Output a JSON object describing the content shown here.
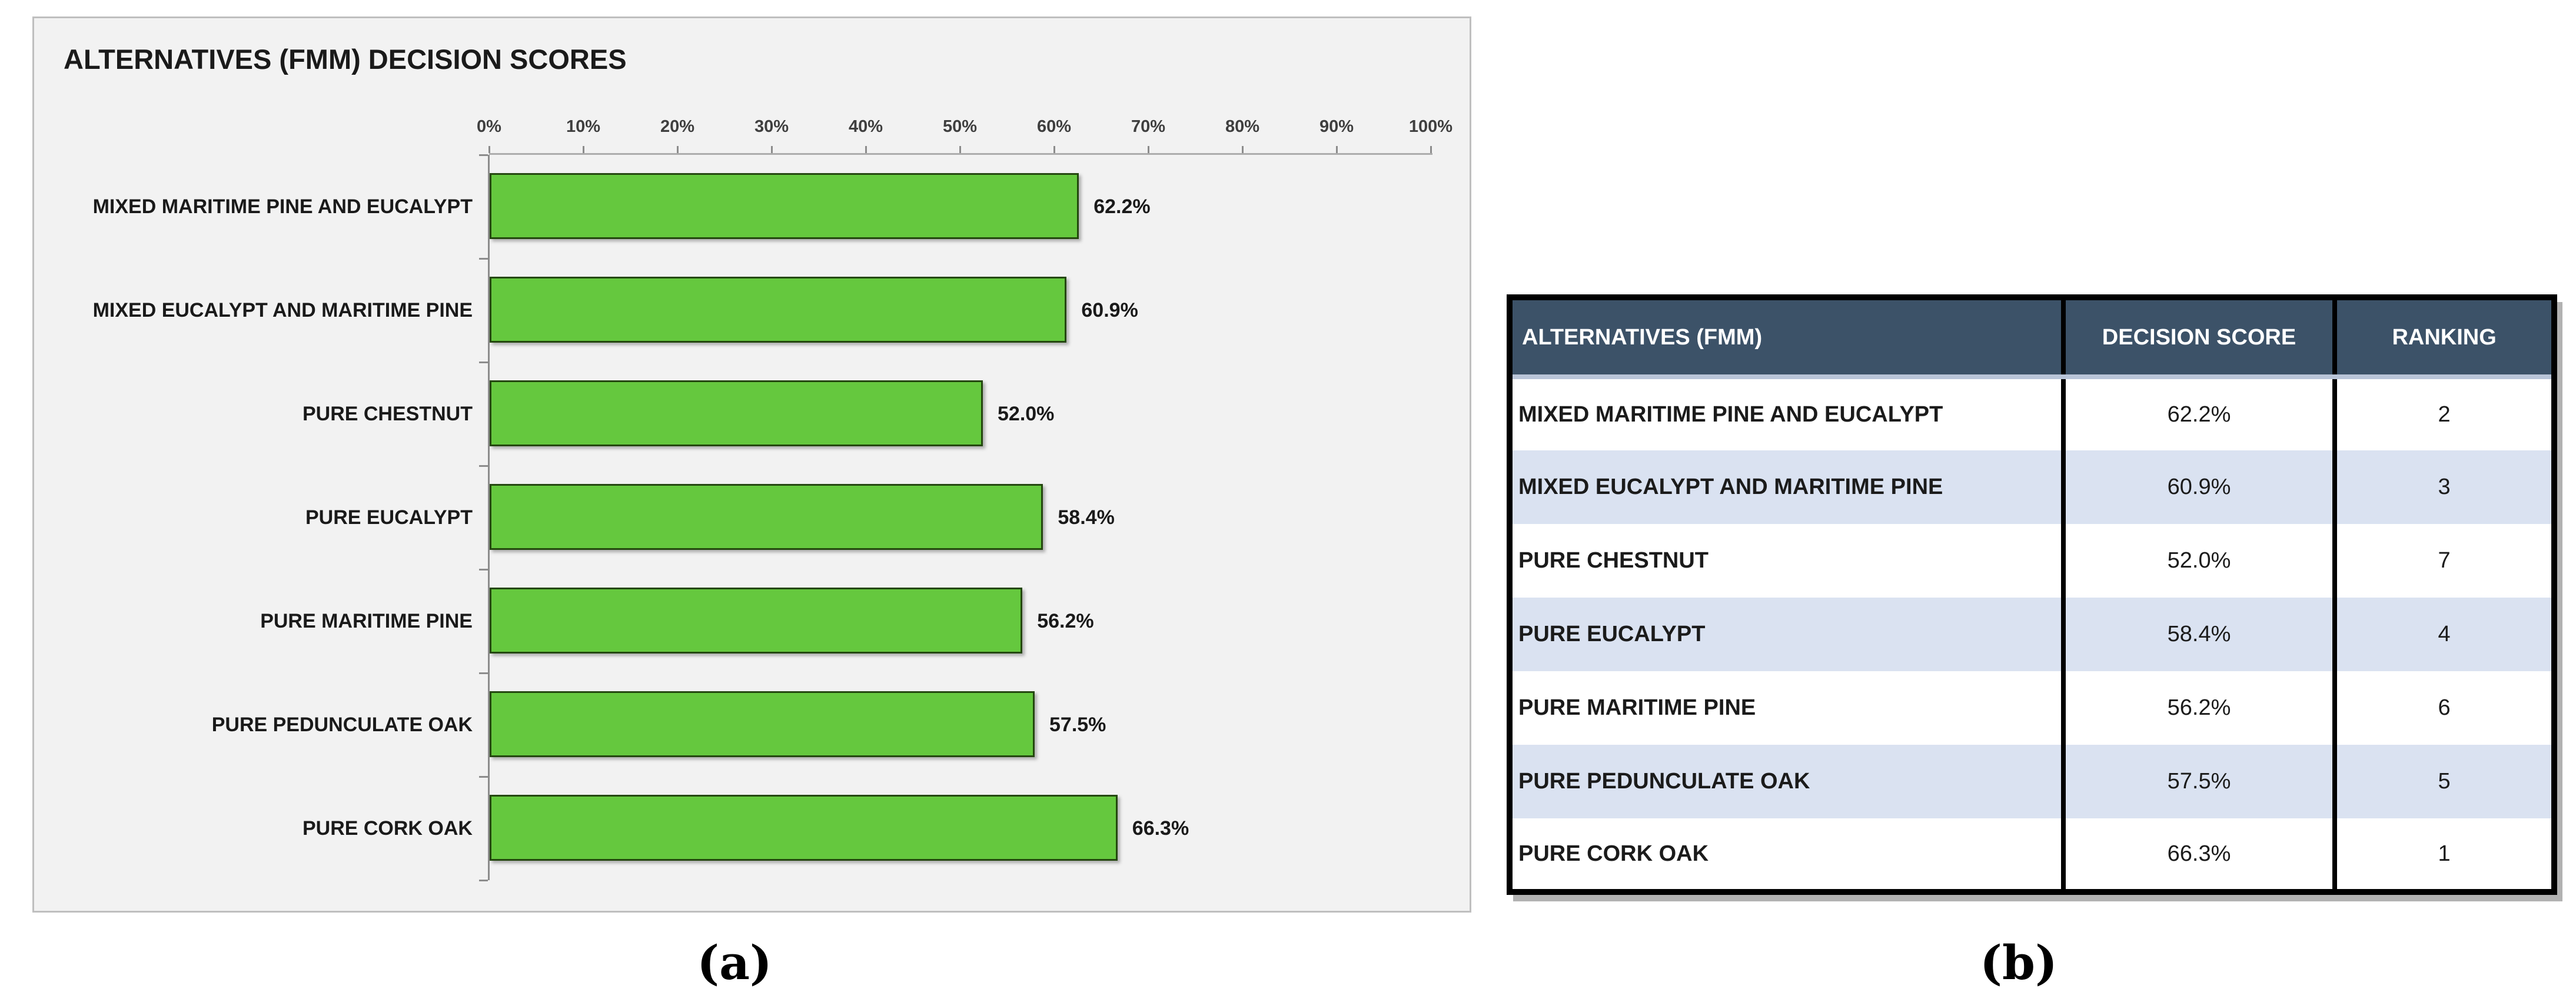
{
  "captions": {
    "a": "(a)",
    "b": "(b)"
  },
  "chart_data": {
    "type": "bar",
    "orientation": "horizontal",
    "title": "ALTERNATIVES (FMM) DECISION SCORES",
    "categories": [
      "MIXED MARITIME PINE AND EUCALYPT",
      "MIXED EUCALYPT AND MARITIME PINE",
      "PURE CHESTNUT",
      "PURE EUCALYPT",
      "PURE MARITIME PINE",
      "PURE PEDUNCULATE OAK",
      "PURE CORK OAK"
    ],
    "values": [
      62.2,
      60.9,
      52.0,
      58.4,
      56.2,
      57.5,
      66.3
    ],
    "value_labels": [
      "62.2%",
      "60.9%",
      "52.0%",
      "58.4%",
      "56.2%",
      "57.5%",
      "66.3%"
    ],
    "x_ticks": [
      "0%",
      "10%",
      "20%",
      "30%",
      "40%",
      "50%",
      "60%",
      "70%",
      "80%",
      "90%",
      "100%"
    ],
    "xlim": [
      0,
      100
    ],
    "xlabel": "",
    "ylabel": "",
    "grid": false,
    "legend": null,
    "value_labels_position": "right-of-bar",
    "axis_position": "top",
    "bar_color": "#65C83E",
    "bar_border_color": "#24470F",
    "panel_background": "#F2F2F2",
    "panel_border_color": "#BFBFBF"
  },
  "table": {
    "columns": [
      "ALTERNATIVES (FMM)",
      "DECISION SCORE",
      "RANKING"
    ],
    "rows": [
      {
        "alternative": "MIXED MARITIME PINE AND EUCALYPT",
        "decision_score": "62.2%",
        "ranking": "2"
      },
      {
        "alternative": "MIXED EUCALYPT AND MARITIME PINE",
        "decision_score": "60.9%",
        "ranking": "3"
      },
      {
        "alternative": "PURE CHESTNUT",
        "decision_score": "52.0%",
        "ranking": "7"
      },
      {
        "alternative": "PURE EUCALYPT",
        "decision_score": "58.4%",
        "ranking": "4"
      },
      {
        "alternative": "PURE MARITIME PINE",
        "decision_score": "56.2%",
        "ranking": "6"
      },
      {
        "alternative": "PURE PEDUNCULATE OAK",
        "decision_score": "57.5%",
        "ranking": "5"
      },
      {
        "alternative": "PURE CORK OAK",
        "decision_score": "66.3%",
        "ranking": "1"
      }
    ],
    "header_bg": "#3C5268",
    "header_text_color": "#FFFFFF",
    "alt_row_bg": "#DAE2F1",
    "shaded_row_indices": [
      1,
      3,
      5
    ]
  }
}
